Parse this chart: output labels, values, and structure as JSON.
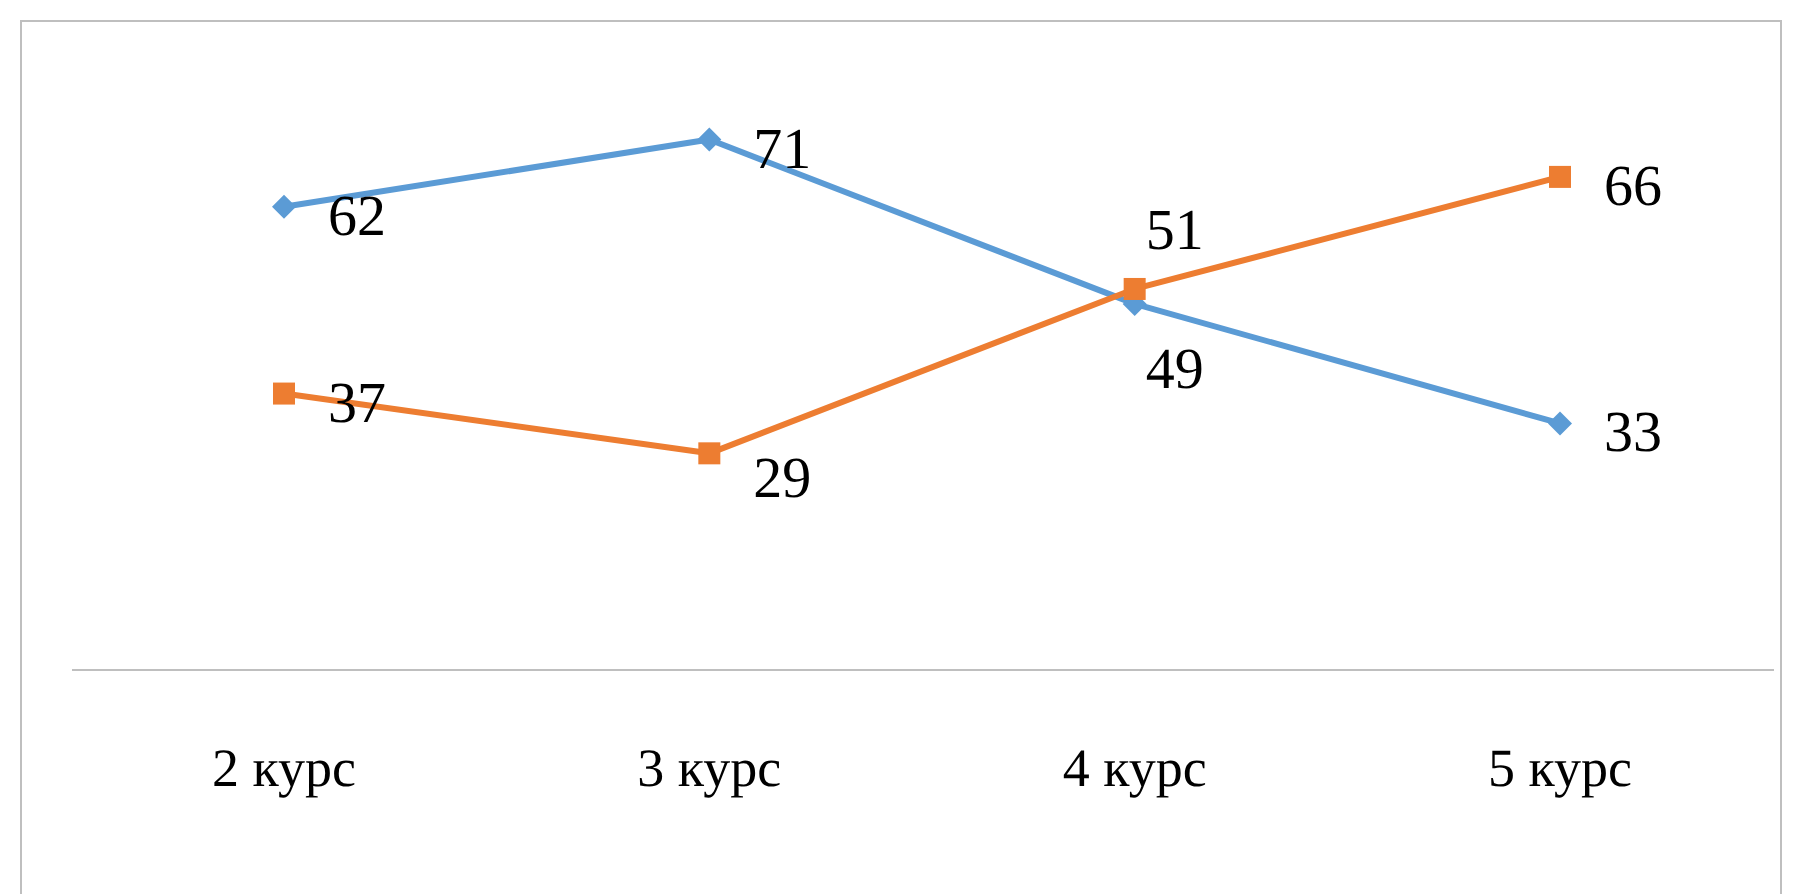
{
  "chart_data": {
    "type": "line",
    "categories": [
      "2 курс",
      "3 курс",
      "4 курс",
      "5 курс"
    ],
    "series": [
      {
        "color": "#5b9bd5",
        "marker": "diamond",
        "values": [
          62,
          71,
          49,
          33
        ]
      },
      {
        "color": "#ed7d31",
        "marker": "square",
        "values": [
          37,
          29,
          51,
          66
        ]
      }
    ],
    "ylim": [
      0,
      87
    ],
    "data_labels": true
  }
}
